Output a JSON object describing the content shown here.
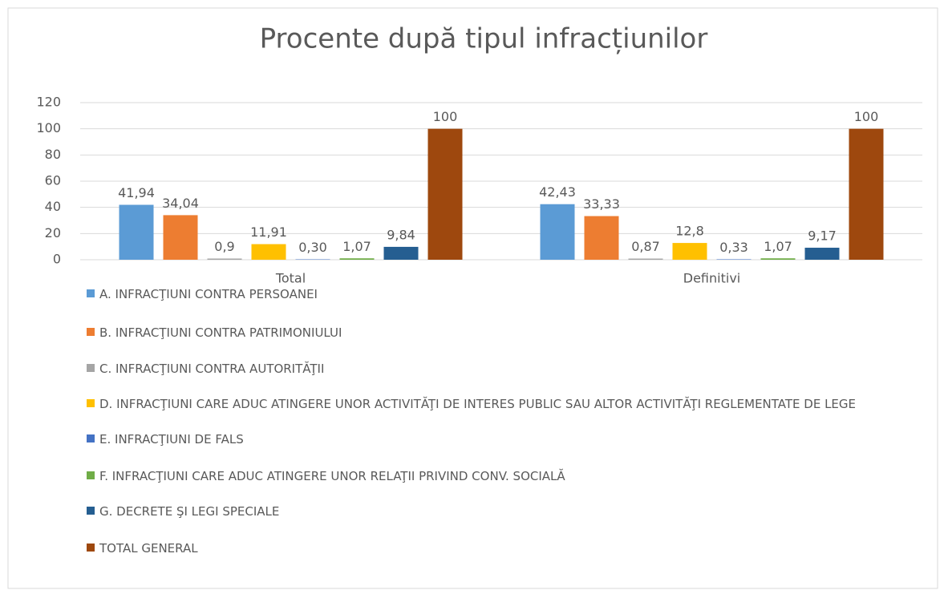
{
  "chart_data": {
    "type": "bar",
    "title": "Procente după tipul infracțiunilor",
    "categories": [
      "Total",
      "Definitivi"
    ],
    "series": [
      {
        "name": "A. INFRACŢIUNI CONTRA PERSOANEI",
        "color": "#5b9bd5",
        "values": [
          41.94,
          42.43
        ],
        "value_labels": [
          "41,94",
          "42,43"
        ]
      },
      {
        "name": "B. INFRACŢIUNI CONTRA PATRIMONIULUI",
        "color": "#ed7d31",
        "values": [
          34.04,
          33.33
        ],
        "value_labels": [
          "34,04",
          "33,33"
        ]
      },
      {
        "name": "C. INFRACŢIUNI CONTRA AUTORITĂŢII",
        "color": "#a5a5a5",
        "values": [
          0.9,
          0.87
        ],
        "value_labels": [
          "0,9",
          "0,87"
        ]
      },
      {
        "name": "D. INFRACŢIUNI CARE ADUC ATINGERE UNOR ACTIVITĂŢI DE INTERES PUBLIC SAU ALTOR ACTIVITĂŢI REGLEMENTATE DE LEGE",
        "color": "#ffc000",
        "values": [
          11.91,
          12.8
        ],
        "value_labels": [
          "11,91",
          "12,8"
        ]
      },
      {
        "name": "E. INFRACŢIUNI DE FALS",
        "color": "#4472c4",
        "values": [
          0.3,
          0.33
        ],
        "value_labels": [
          "0,30",
          "0,33"
        ]
      },
      {
        "name": "F. INFRACŢIUNI CARE ADUC ATINGERE UNOR RELAŢII PRIVIND CONV. SOCIALĂ",
        "color": "#70ad47",
        "values": [
          1.07,
          1.07
        ],
        "value_labels": [
          "1,07",
          "1,07"
        ]
      },
      {
        "name": "G. DECRETE ŞI LEGI SPECIALE",
        "color": "#255e91",
        "values": [
          9.84,
          9.17
        ],
        "value_labels": [
          "9,84",
          "9,17"
        ]
      },
      {
        "name": "TOTAL GENERAL",
        "color": "#9e480e",
        "values": [
          100,
          100
        ],
        "value_labels": [
          "100",
          "100"
        ]
      }
    ],
    "ylim": [
      0,
      120
    ],
    "yticks": [
      0,
      20,
      40,
      60,
      80,
      100,
      120
    ],
    "grid": true,
    "legend": "bottom"
  }
}
